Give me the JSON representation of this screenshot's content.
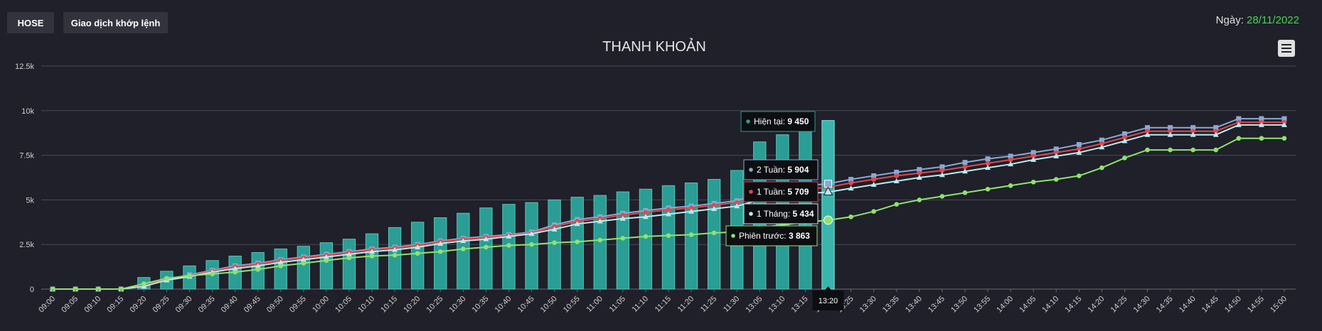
{
  "toolbar": {
    "exchange_label": "HOSE",
    "mode_label": "Giao dịch khớp lệnh"
  },
  "date": {
    "label": "Ngày:",
    "value": "28/11/2022"
  },
  "menu_icon": "hamburger-menu-icon",
  "colors": {
    "bar": "#2a9d94",
    "two_weeks": "#8aa8d6",
    "one_week": "#e5474b",
    "one_month": "#b8ecf2",
    "prev_session": "#8fe36d",
    "grid": "#4a4b55"
  },
  "chart_data": {
    "type": "bar",
    "title": "THANH KHOẢN",
    "ylim": [
      0,
      12500
    ],
    "yticks": [
      "0",
      "2.5k",
      "5k",
      "7.5k",
      "10k",
      "12.5k"
    ],
    "categories": [
      "09:00",
      "09:05",
      "09:10",
      "09:15",
      "09:20",
      "09:25",
      "09:30",
      "09:35",
      "09:40",
      "09:45",
      "09:50",
      "09:55",
      "10:00",
      "10:05",
      "10:10",
      "10:15",
      "10:20",
      "10:25",
      "10:30",
      "10:35",
      "10:40",
      "10:45",
      "10:50",
      "10:55",
      "11:00",
      "11:05",
      "11:10",
      "11:15",
      "11:20",
      "11:25",
      "11:30",
      "13:05",
      "13:10",
      "13:15",
      "13:20",
      "13:25",
      "13:30",
      "13:35",
      "13:40",
      "13:45",
      "13:50",
      "13:55",
      "14:00",
      "14:05",
      "14:10",
      "14:15",
      "14:20",
      "14:25",
      "14:30",
      "14:35",
      "14:40",
      "14:45",
      "14:50",
      "14:55",
      "15:00"
    ],
    "bars": {
      "name": "Hiện tại",
      "values": [
        0,
        0,
        0,
        0,
        650,
        1000,
        1300,
        1600,
        1850,
        2050,
        2250,
        2400,
        2600,
        2800,
        3100,
        3450,
        3750,
        4000,
        4250,
        4550,
        4750,
        4850,
        5000,
        5150,
        5250,
        5450,
        5600,
        5800,
        5950,
        6150,
        6650,
        8250,
        8650,
        9150,
        9450
      ]
    },
    "series": [
      {
        "name": "2 Tuần",
        "marker": "square",
        "values": [
          0,
          0,
          0,
          0,
          200,
          550,
          800,
          1050,
          1300,
          1450,
          1650,
          1800,
          1950,
          2100,
          2250,
          2350,
          2500,
          2700,
          2850,
          2950,
          3050,
          3200,
          3600,
          3900,
          4050,
          4250,
          4400,
          4550,
          4650,
          4800,
          4950,
          5400,
          5600,
          5800,
          5904,
          6150,
          6350,
          6550,
          6700,
          6850,
          7100,
          7300,
          7450,
          7650,
          7850,
          8100,
          8350,
          8700,
          9050,
          9050,
          9050,
          9050,
          9550,
          9550,
          9550
        ]
      },
      {
        "name": "1 Tuần",
        "marker": "circle",
        "values": [
          0,
          0,
          0,
          0,
          200,
          550,
          750,
          1000,
          1250,
          1400,
          1600,
          1750,
          1900,
          2050,
          2200,
          2300,
          2450,
          2650,
          2800,
          2900,
          3000,
          3150,
          3500,
          3800,
          3950,
          4150,
          4300,
          4450,
          4550,
          4700,
          4850,
          5250,
          5450,
          5600,
          5709,
          5950,
          6150,
          6350,
          6500,
          6650,
          6850,
          7050,
          7250,
          7450,
          7650,
          7850,
          8150,
          8500,
          8850,
          8850,
          8850,
          8850,
          9350,
          9350,
          9350
        ]
      },
      {
        "name": "1 Tháng",
        "marker": "triangle",
        "values": [
          0,
          0,
          0,
          0,
          150,
          500,
          700,
          950,
          1150,
          1300,
          1500,
          1650,
          1800,
          1950,
          2100,
          2200,
          2350,
          2550,
          2700,
          2800,
          2950,
          3100,
          3350,
          3650,
          3800,
          3950,
          4050,
          4200,
          4350,
          4500,
          4650,
          5000,
          5200,
          5350,
          5434,
          5650,
          5850,
          6050,
          6250,
          6400,
          6600,
          6800,
          7000,
          7250,
          7450,
          7650,
          7950,
          8300,
          8650,
          8650,
          8650,
          8650,
          9200,
          9200,
          9200
        ]
      },
      {
        "name": "Phiên trước",
        "marker": "circle",
        "values": [
          0,
          0,
          0,
          0,
          300,
          600,
          750,
          850,
          950,
          1100,
          1300,
          1450,
          1600,
          1750,
          1850,
          1900,
          2000,
          2100,
          2250,
          2350,
          2450,
          2500,
          2600,
          2650,
          2750,
          2850,
          2950,
          3000,
          3050,
          3150,
          3200,
          3450,
          3600,
          3750,
          3863,
          4050,
          4350,
          4750,
          5000,
          5200,
          5400,
          5600,
          5800,
          6000,
          6150,
          6350,
          6800,
          7350,
          7800,
          7800,
          7800,
          7800,
          8450,
          8450,
          8450
        ]
      }
    ],
    "tooltip": {
      "time": "13:20",
      "bar": {
        "label": "Hiện tại:",
        "value": "9 450"
      },
      "items": [
        {
          "label": "2 Tuần:",
          "value": "5 904"
        },
        {
          "label": "1 Tuần:",
          "value": "5 709"
        },
        {
          "label": "1 Tháng:",
          "value": "5 434"
        },
        {
          "label": "Phiên trước:",
          "value": "3 863"
        }
      ]
    }
  }
}
